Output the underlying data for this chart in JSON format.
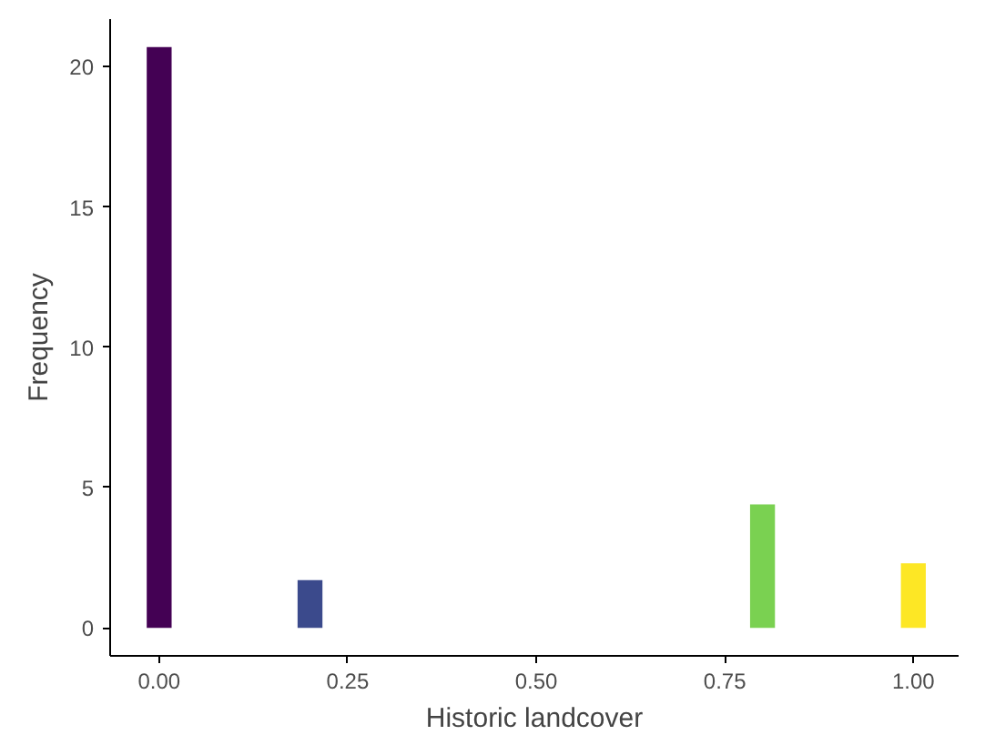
{
  "chart_data": {
    "type": "bar",
    "xlabel": "Historic landcover",
    "ylabel": "Frequency",
    "x": [
      0,
      0.2,
      0.8,
      1.0
    ],
    "values": [
      20.7,
      1.7,
      4.4,
      2.3
    ],
    "colors": [
      "#440154",
      "#3b4a8c",
      "#7ad151",
      "#fde725"
    ],
    "xlim": [
      -0.065,
      1.06
    ],
    "ylim": [
      -1,
      21.7
    ],
    "xticks": [
      {
        "value": 0,
        "label": "0.00"
      },
      {
        "value": 0.25,
        "label": "0.25"
      },
      {
        "value": 0.5,
        "label": "0.50"
      },
      {
        "value": 0.75,
        "label": "0.75"
      },
      {
        "value": 1,
        "label": "1.00"
      }
    ],
    "yticks": [
      0,
      5,
      10,
      15,
      20
    ],
    "grid": false
  }
}
